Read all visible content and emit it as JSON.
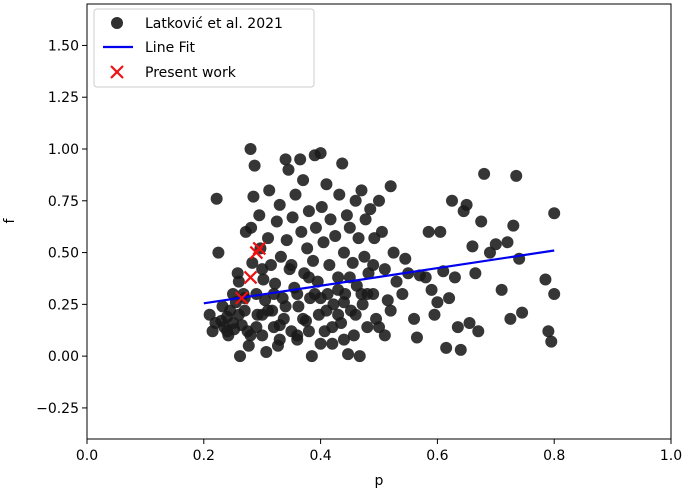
{
  "chart_data": {
    "type": "scatter",
    "xlabel": "p",
    "ylabel": "f",
    "xlim": [
      0.0,
      1.0
    ],
    "ylim": [
      -0.4,
      1.7
    ],
    "xticks": [
      "0.0",
      "0.2",
      "0.4",
      "0.6",
      "0.8",
      "1.0"
    ],
    "yticks": [
      "−0.25",
      "0.00",
      "0.25",
      "0.50",
      "0.75",
      "1.00",
      "1.25",
      "1.50"
    ],
    "legend_position": "top-left",
    "grid": false,
    "colors": {
      "scatter": "#1a1a1a",
      "fit": "#0000ee",
      "present": "#ee1111"
    },
    "series": [
      {
        "name": "Latković et al. 2021",
        "kind": "scatter",
        "points": [
          [
            0.21,
            0.2
          ],
          [
            0.215,
            0.12
          ],
          [
            0.22,
            0.16
          ],
          [
            0.225,
            0.5
          ],
          [
            0.222,
            0.76
          ],
          [
            0.23,
            0.17
          ],
          [
            0.232,
            0.24
          ],
          [
            0.235,
            0.14
          ],
          [
            0.24,
            0.19
          ],
          [
            0.242,
            0.1
          ],
          [
            0.245,
            0.22
          ],
          [
            0.25,
            0.3
          ],
          [
            0.252,
            0.13
          ],
          [
            0.255,
            0.26
          ],
          [
            0.258,
            0.4
          ],
          [
            0.26,
            0.2
          ],
          [
            0.262,
            0.0
          ],
          [
            0.265,
            0.15
          ],
          [
            0.268,
            0.3
          ],
          [
            0.27,
            0.22
          ],
          [
            0.272,
            0.6
          ],
          [
            0.275,
            0.12
          ],
          [
            0.277,
            0.05
          ],
          [
            0.28,
            1.0
          ],
          [
            0.281,
            0.62
          ],
          [
            0.283,
            0.45
          ],
          [
            0.285,
            0.77
          ],
          [
            0.287,
            0.92
          ],
          [
            0.29,
            0.3
          ],
          [
            0.292,
            0.2
          ],
          [
            0.295,
            0.68
          ],
          [
            0.297,
            0.52
          ],
          [
            0.3,
            0.1
          ],
          [
            0.302,
            0.37
          ],
          [
            0.305,
            0.27
          ],
          [
            0.307,
            0.02
          ],
          [
            0.31,
            0.57
          ],
          [
            0.312,
            0.8
          ],
          [
            0.315,
            0.44
          ],
          [
            0.317,
            0.22
          ],
          [
            0.32,
            0.14
          ],
          [
            0.322,
            0.35
          ],
          [
            0.325,
            0.65
          ],
          [
            0.327,
            0.05
          ],
          [
            0.33,
            0.73
          ],
          [
            0.332,
            0.48
          ],
          [
            0.335,
            0.28
          ],
          [
            0.337,
            0.18
          ],
          [
            0.34,
            0.95
          ],
          [
            0.342,
            0.56
          ],
          [
            0.345,
            0.9
          ],
          [
            0.347,
            0.42
          ],
          [
            0.35,
            0.12
          ],
          [
            0.352,
            0.67
          ],
          [
            0.355,
            0.33
          ],
          [
            0.357,
            0.78
          ],
          [
            0.36,
            0.08
          ],
          [
            0.362,
            0.24
          ],
          [
            0.365,
            0.95
          ],
          [
            0.367,
            0.6
          ],
          [
            0.37,
            0.85
          ],
          [
            0.372,
            0.4
          ],
          [
            0.375,
            0.17
          ],
          [
            0.377,
            0.52
          ],
          [
            0.38,
            0.7
          ],
          [
            0.382,
            0.28
          ],
          [
            0.385,
            0.0
          ],
          [
            0.387,
            0.46
          ],
          [
            0.39,
            0.97
          ],
          [
            0.392,
            0.62
          ],
          [
            0.395,
            0.36
          ],
          [
            0.397,
            0.2
          ],
          [
            0.4,
            0.98
          ],
          [
            0.402,
            0.72
          ],
          [
            0.405,
            0.55
          ],
          [
            0.407,
            0.12
          ],
          [
            0.41,
            0.83
          ],
          [
            0.412,
            0.3
          ],
          [
            0.415,
            0.44
          ],
          [
            0.417,
            0.66
          ],
          [
            0.42,
            0.06
          ],
          [
            0.422,
            0.25
          ],
          [
            0.425,
            0.58
          ],
          [
            0.43,
            0.38
          ],
          [
            0.432,
            0.78
          ],
          [
            0.435,
            0.16
          ],
          [
            0.437,
            0.93
          ],
          [
            0.44,
            0.5
          ],
          [
            0.442,
            0.3
          ],
          [
            0.445,
            0.68
          ],
          [
            0.447,
            0.01
          ],
          [
            0.45,
            0.62
          ],
          [
            0.452,
            0.22
          ],
          [
            0.455,
            0.45
          ],
          [
            0.457,
            0.1
          ],
          [
            0.46,
            0.75
          ],
          [
            0.462,
            0.34
          ],
          [
            0.465,
            0.57
          ],
          [
            0.467,
            0.0
          ],
          [
            0.47,
            0.8
          ],
          [
            0.472,
            0.25
          ],
          [
            0.475,
            0.48
          ],
          [
            0.477,
            0.66
          ],
          [
            0.48,
            0.14
          ],
          [
            0.482,
            0.4
          ],
          [
            0.485,
            0.71
          ],
          [
            0.49,
            0.3
          ],
          [
            0.492,
            0.57
          ],
          [
            0.495,
            0.18
          ],
          [
            0.5,
            0.75
          ],
          [
            0.505,
            0.6
          ],
          [
            0.51,
            0.42
          ],
          [
            0.515,
            0.27
          ],
          [
            0.52,
            0.82
          ],
          [
            0.525,
            0.5
          ],
          [
            0.53,
            0.36
          ],
          [
            0.54,
            0.3
          ],
          [
            0.545,
            0.47
          ],
          [
            0.55,
            0.4
          ],
          [
            0.56,
            0.18
          ],
          [
            0.565,
            0.09
          ],
          [
            0.57,
            0.39
          ],
          [
            0.58,
            0.38
          ],
          [
            0.585,
            0.6
          ],
          [
            0.59,
            0.32
          ],
          [
            0.595,
            0.2
          ],
          [
            0.6,
            0.26
          ],
          [
            0.605,
            0.6
          ],
          [
            0.61,
            0.41
          ],
          [
            0.615,
            0.04
          ],
          [
            0.62,
            0.28
          ],
          [
            0.625,
            0.75
          ],
          [
            0.63,
            0.38
          ],
          [
            0.635,
            0.14
          ],
          [
            0.64,
            0.03
          ],
          [
            0.645,
            0.7
          ],
          [
            0.65,
            0.73
          ],
          [
            0.655,
            0.16
          ],
          [
            0.66,
            0.53
          ],
          [
            0.665,
            0.4
          ],
          [
            0.67,
            0.12
          ],
          [
            0.675,
            0.65
          ],
          [
            0.68,
            0.88
          ],
          [
            0.69,
            0.5
          ],
          [
            0.7,
            0.54
          ],
          [
            0.71,
            0.32
          ],
          [
            0.72,
            0.55
          ],
          [
            0.725,
            0.18
          ],
          [
            0.73,
            0.63
          ],
          [
            0.735,
            0.87
          ],
          [
            0.74,
            0.47
          ],
          [
            0.745,
            0.21
          ],
          [
            0.785,
            0.37
          ],
          [
            0.79,
            0.12
          ],
          [
            0.795,
            0.07
          ],
          [
            0.8,
            0.69
          ],
          [
            0.8,
            0.3
          ],
          [
            0.28,
            0.1
          ],
          [
            0.3,
            0.2
          ],
          [
            0.33,
            0.15
          ],
          [
            0.36,
            0.3
          ],
          [
            0.38,
            0.12
          ],
          [
            0.41,
            0.22
          ],
          [
            0.43,
            0.2
          ],
          [
            0.25,
            0.16
          ],
          [
            0.27,
            0.28
          ],
          [
            0.29,
            0.14
          ],
          [
            0.31,
            0.22
          ],
          [
            0.34,
            0.24
          ],
          [
            0.37,
            0.18
          ],
          [
            0.39,
            0.3
          ],
          [
            0.42,
            0.14
          ],
          [
            0.44,
            0.26
          ],
          [
            0.46,
            0.2
          ],
          [
            0.48,
            0.3
          ],
          [
            0.5,
            0.14
          ],
          [
            0.52,
            0.22
          ],
          [
            0.26,
            0.36
          ],
          [
            0.3,
            0.42
          ],
          [
            0.32,
            0.3
          ],
          [
            0.35,
            0.44
          ],
          [
            0.38,
            0.38
          ],
          [
            0.4,
            0.28
          ],
          [
            0.43,
            0.32
          ],
          [
            0.45,
            0.38
          ],
          [
            0.47,
            0.3
          ],
          [
            0.49,
            0.44
          ],
          [
            0.24,
            0.12
          ],
          [
            0.33,
            0.08
          ],
          [
            0.36,
            0.1
          ],
          [
            0.4,
            0.06
          ],
          [
            0.44,
            0.08
          ],
          [
            0.51,
            0.1
          ]
        ]
      },
      {
        "name": "Line Fit",
        "kind": "line",
        "x": [
          0.2,
          0.8
        ],
        "y": [
          0.255,
          0.51
        ]
      },
      {
        "name": "Present work",
        "kind": "x-marker",
        "points": [
          [
            0.265,
            0.28
          ],
          [
            0.28,
            0.38
          ],
          [
            0.29,
            0.5
          ],
          [
            0.295,
            0.52
          ]
        ]
      }
    ]
  }
}
